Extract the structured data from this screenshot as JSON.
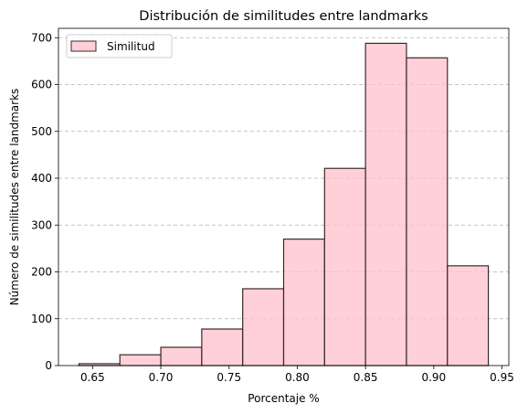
{
  "chart_data": {
    "type": "bar",
    "title": "Distribución de similitudes entre landmarks",
    "xlabel": "Porcentaje %",
    "ylabel": "Número de similitudes entre landmarks",
    "xlim": [
      0.625,
      0.955
    ],
    "ylim": [
      0,
      720
    ],
    "x_ticks": [
      "0.65",
      "0.70",
      "0.75",
      "0.80",
      "0.85",
      "0.90",
      "0.95"
    ],
    "x_tick_values": [
      0.65,
      0.7,
      0.75,
      0.8,
      0.85,
      0.9,
      0.95
    ],
    "y_ticks": [
      "0",
      "100",
      "200",
      "300",
      "400",
      "500",
      "600",
      "700"
    ],
    "y_tick_values": [
      0,
      100,
      200,
      300,
      400,
      500,
      600,
      700
    ],
    "grid": "y-dashed",
    "legend_position": "top-left",
    "bin_edges": [
      0.64,
      0.67,
      0.7,
      0.73,
      0.76,
      0.79,
      0.82,
      0.85,
      0.88,
      0.91,
      0.94
    ],
    "series": [
      {
        "name": "Similitud",
        "values": [
          4,
          23,
          39,
          78,
          164,
          270,
          421,
          688,
          657,
          213
        ],
        "color": "#ffc0cb",
        "edge_color": "#3a2a2a"
      }
    ]
  }
}
